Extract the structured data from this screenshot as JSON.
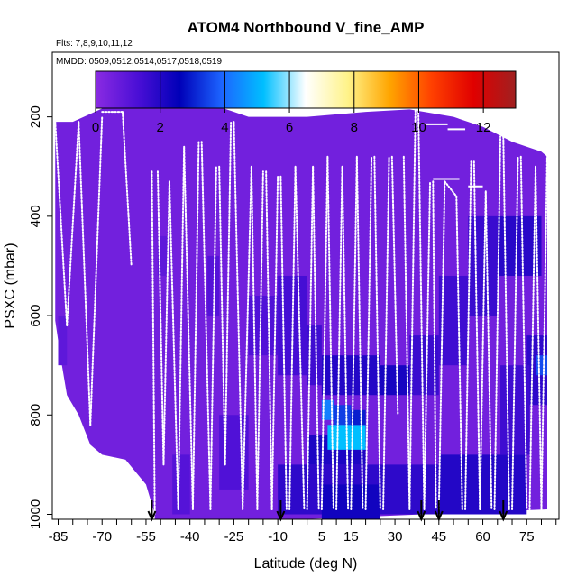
{
  "chart_data": {
    "type": "heatmap",
    "title": "ATOM4 Northbound V_fine_AMP",
    "subtitle_flights": "Flts: 7,8,9,10,11,12",
    "subtitle_dates": "MMDD: 0509,0512,0514,0517,0518,0519",
    "xlabel": "Latitude (deg N)",
    "ylabel": "PSXC (mbar)",
    "xlim": [
      -87,
      86
    ],
    "ylim": [
      1010,
      70
    ],
    "x_ticks": [
      -85,
      -70,
      -55,
      -40,
      -25,
      -10,
      5,
      15,
      30,
      45,
      60,
      75
    ],
    "x_tick_labels": [
      "-85",
      "-70",
      "-55",
      "-40",
      "-25",
      "-10",
      "5",
      "15",
      "30",
      "45",
      "60",
      "75"
    ],
    "y_ticks": [
      200,
      400,
      600,
      800,
      1000
    ],
    "y_tick_labels": [
      "200",
      "400",
      "600",
      "800",
      "1000"
    ],
    "colorbar": {
      "min": 0,
      "max": 13,
      "ticks": [
        0,
        2,
        4,
        6,
        8,
        10,
        12
      ],
      "tick_labels": [
        "0",
        "2",
        "4",
        "6",
        "8",
        "10",
        "12"
      ],
      "colors": [
        "#8a2be2",
        "#4b0fd6",
        "#0000b8",
        "#1c64ff",
        "#00bfff",
        "#ffffff",
        "#fff38a",
        "#ffa500",
        "#ff4000",
        "#e00000",
        "#a02020"
      ]
    },
    "background_value": 0.5,
    "top_boundary": [
      [
        -86,
        210
      ],
      [
        -80,
        210
      ],
      [
        -65,
        170
      ],
      [
        -50,
        170
      ],
      [
        -30,
        180
      ],
      [
        -20,
        200
      ],
      [
        0,
        200
      ],
      [
        20,
        190
      ],
      [
        35,
        185
      ],
      [
        50,
        200
      ],
      [
        60,
        220
      ],
      [
        70,
        250
      ],
      [
        80,
        270
      ],
      [
        82,
        280
      ]
    ],
    "bottom_boundary": [
      [
        -86,
        610
      ],
      [
        -84,
        690
      ],
      [
        -82,
        760
      ],
      [
        -78,
        800
      ],
      [
        -74,
        860
      ],
      [
        -70,
        880
      ],
      [
        -62,
        890
      ],
      [
        -55,
        940
      ],
      [
        -52,
        1000
      ]
    ],
    "cells": [
      {
        "lat": [
          -85,
          -82
        ],
        "p": [
          600,
          700
        ],
        "value": 0.9
      },
      {
        "lat": [
          -51,
          -47
        ],
        "p": [
          440,
          520
        ],
        "value": 0.9
      },
      {
        "lat": [
          -34,
          -30
        ],
        "p": [
          480,
          600
        ],
        "value": 1.1
      },
      {
        "lat": [
          -20,
          -10
        ],
        "p": [
          560,
          680
        ],
        "value": 1.2
      },
      {
        "lat": [
          -10,
          0
        ],
        "p": [
          520,
          720
        ],
        "value": 1.4
      },
      {
        "lat": [
          0,
          5
        ],
        "p": [
          620,
          740
        ],
        "value": 1.5
      },
      {
        "lat": [
          5,
          25
        ],
        "p": [
          680,
          760
        ],
        "value": 2.0
      },
      {
        "lat": [
          25,
          35
        ],
        "p": [
          700,
          760
        ],
        "value": 2.2
      },
      {
        "lat": [
          35,
          45
        ],
        "p": [
          640,
          760
        ],
        "value": 1.6
      },
      {
        "lat": [
          45,
          55
        ],
        "p": [
          520,
          700
        ],
        "value": 1.5
      },
      {
        "lat": [
          55,
          65
        ],
        "p": [
          400,
          600
        ],
        "value": 1.6
      },
      {
        "lat": [
          65,
          80
        ],
        "p": [
          400,
          520
        ],
        "value": 1.9
      },
      {
        "lat": [
          75,
          82
        ],
        "p": [
          640,
          780
        ],
        "value": 1.8
      },
      {
        "lat": [
          -10,
          45
        ],
        "p": [
          900,
          1000
        ],
        "value": 1.8
      },
      {
        "lat": [
          5,
          25
        ],
        "p": [
          940,
          1010
        ],
        "value": 2.3
      },
      {
        "lat": [
          45,
          75
        ],
        "p": [
          880,
          1000
        ],
        "value": 2.0
      },
      {
        "lat": [
          0,
          20
        ],
        "p": [
          840,
          900
        ],
        "value": 2.1
      },
      {
        "lat": [
          5,
          9
        ],
        "p": [
          770,
          810
        ],
        "value": 4.3
      },
      {
        "lat": [
          9,
          15
        ],
        "p": [
          780,
          820
        ],
        "value": 3.4
      },
      {
        "lat": [
          7,
          20
        ],
        "p": [
          820,
          870
        ],
        "value": 5.2
      },
      {
        "lat": [
          15,
          20
        ],
        "p": [
          790,
          820
        ],
        "value": 3.0
      },
      {
        "lat": [
          -46,
          -40
        ],
        "p": [
          880,
          1000
        ],
        "value": 1.1
      },
      {
        "lat": [
          -30,
          -20
        ],
        "p": [
          800,
          950
        ],
        "value": 1.2
      },
      {
        "lat": [
          66,
          76
        ],
        "p": [
          700,
          880
        ],
        "value": 1.5
      },
      {
        "lat": [
          78,
          82
        ],
        "p": [
          680,
          720
        ],
        "value": 3.6
      }
    ],
    "profiles": [
      {
        "lat_start": -86,
        "lat_end": -82,
        "p_start": 210,
        "p_end": 620
      },
      {
        "lat_start": -82,
        "lat_end": -78,
        "p_start": 620,
        "p_end": 210
      },
      {
        "lat_start": -78,
        "lat_end": -74,
        "p_start": 210,
        "p_end": 820
      },
      {
        "lat_start": -74,
        "lat_end": -70,
        "p_start": 820,
        "p_end": 200
      },
      {
        "lat_start": -70,
        "lat_end": -63,
        "p_start": 190,
        "p_end": 190
      },
      {
        "lat_start": -63,
        "lat_end": -60,
        "p_start": 190,
        "p_end": 500
      },
      {
        "lat_start": -53,
        "lat_end": -52,
        "p_start": 310,
        "p_end": 1000
      },
      {
        "lat_start": -51,
        "lat_end": -49,
        "p_start": 310,
        "p_end": 900
      },
      {
        "lat_start": -49,
        "lat_end": -47,
        "p_start": 900,
        "p_end": 330
      },
      {
        "lat_start": -47,
        "lat_end": -44,
        "p_start": 330,
        "p_end": 990
      },
      {
        "lat_start": -44,
        "lat_end": -42,
        "p_start": 990,
        "p_end": 260
      },
      {
        "lat_start": -42,
        "lat_end": -39,
        "p_start": 260,
        "p_end": 990
      },
      {
        "lat_start": -39,
        "lat_end": -37,
        "p_start": 990,
        "p_end": 250
      },
      {
        "lat_start": -36,
        "lat_end": -33,
        "p_start": 250,
        "p_end": 990
      },
      {
        "lat_start": -33,
        "lat_end": -31,
        "p_start": 990,
        "p_end": 300
      },
      {
        "lat_start": -30,
        "lat_end": -28,
        "p_start": 300,
        "p_end": 900
      },
      {
        "lat_start": -28,
        "lat_end": -26,
        "p_start": 900,
        "p_end": 210
      },
      {
        "lat_start": -25,
        "lat_end": -22,
        "p_start": 210,
        "p_end": 990
      },
      {
        "lat_start": -22,
        "lat_end": -19,
        "p_start": 990,
        "p_end": 300
      },
      {
        "lat_start": -19,
        "lat_end": -17,
        "p_start": 300,
        "p_end": 990
      },
      {
        "lat_start": -17,
        "lat_end": -15,
        "p_start": 990,
        "p_end": 310
      },
      {
        "lat_start": -14,
        "lat_end": -12,
        "p_start": 310,
        "p_end": 990
      },
      {
        "lat_start": -12,
        "lat_end": -10,
        "p_start": 990,
        "p_end": 320
      },
      {
        "lat_start": -9,
        "lat_end": -7,
        "p_start": 320,
        "p_end": 990
      },
      {
        "lat_start": -6,
        "lat_end": -4,
        "p_start": 990,
        "p_end": 300
      },
      {
        "lat_start": -4,
        "lat_end": -1,
        "p_start": 300,
        "p_end": 990
      },
      {
        "lat_start": 0,
        "lat_end": 2,
        "p_start": 990,
        "p_end": 300
      },
      {
        "lat_start": 2,
        "lat_end": 4,
        "p_start": 300,
        "p_end": 990
      },
      {
        "lat_start": 5,
        "lat_end": 7,
        "p_start": 990,
        "p_end": 280
      },
      {
        "lat_start": 7,
        "lat_end": 9,
        "p_start": 280,
        "p_end": 990
      },
      {
        "lat_start": 10,
        "lat_end": 12,
        "p_start": 990,
        "p_end": 300
      },
      {
        "lat_start": 12,
        "lat_end": 14,
        "p_start": 300,
        "p_end": 990
      },
      {
        "lat_start": 15,
        "lat_end": 17,
        "p_start": 990,
        "p_end": 280
      },
      {
        "lat_start": 17,
        "lat_end": 19,
        "p_start": 280,
        "p_end": 990
      },
      {
        "lat_start": 20,
        "lat_end": 22,
        "p_start": 990,
        "p_end": 280
      },
      {
        "lat_start": 23,
        "lat_end": 25,
        "p_start": 280,
        "p_end": 990
      },
      {
        "lat_start": 26,
        "lat_end": 28,
        "p_start": 990,
        "p_end": 280
      },
      {
        "lat_start": 29,
        "lat_end": 31,
        "p_start": 280,
        "p_end": 800
      },
      {
        "lat_start": 33,
        "lat_end": 35,
        "p_start": 280,
        "p_end": 990
      },
      {
        "lat_start": 35,
        "lat_end": 37,
        "p_start": 990,
        "p_end": 185
      },
      {
        "lat_start": 38,
        "lat_end": 40,
        "p_start": 185,
        "p_end": 990
      },
      {
        "lat_start": 40,
        "lat_end": 42,
        "p_start": 990,
        "p_end": 330
      },
      {
        "lat_start": 43,
        "lat_end": 44,
        "p_start": 330,
        "p_end": 990
      },
      {
        "lat_start": 45,
        "lat_end": 47,
        "p_start": 990,
        "p_end": 330
      },
      {
        "lat_start": 47,
        "lat_end": 51,
        "p_start": 330,
        "p_end": 360
      },
      {
        "lat_start": 51,
        "lat_end": 53,
        "p_start": 360,
        "p_end": 990
      },
      {
        "lat_start": 54,
        "lat_end": 56,
        "p_start": 990,
        "p_end": 290
      },
      {
        "lat_start": 57,
        "lat_end": 59,
        "p_start": 290,
        "p_end": 990
      },
      {
        "lat_start": 59,
        "lat_end": 61,
        "p_start": 990,
        "p_end": 350
      },
      {
        "lat_start": 61,
        "lat_end": 63,
        "p_start": 350,
        "p_end": 990
      },
      {
        "lat_start": 64,
        "lat_end": 66,
        "p_start": 990,
        "p_end": 240
      },
      {
        "lat_start": 67,
        "lat_end": 69,
        "p_start": 240,
        "p_end": 990
      },
      {
        "lat_start": 70,
        "lat_end": 72,
        "p_start": 990,
        "p_end": 280
      },
      {
        "lat_start": 73,
        "lat_end": 75,
        "p_start": 280,
        "p_end": 990
      },
      {
        "lat_start": 76,
        "lat_end": 78,
        "p_start": 990,
        "p_end": 300
      },
      {
        "lat_start": 78,
        "lat_end": 80,
        "p_start": 300,
        "p_end": 990
      },
      {
        "lat_start": 80,
        "lat_end": 82,
        "p_start": 990,
        "p_end": 270
      }
    ],
    "level_segments": [
      {
        "lat": [
          40,
          48
        ],
        "p": 215
      },
      {
        "lat": [
          48,
          54
        ],
        "p": 225
      },
      {
        "lat": [
          57,
          62
        ],
        "p": 205
      },
      {
        "lat": [
          62,
          68
        ],
        "p": 205
      },
      {
        "lat": [
          55,
          60
        ],
        "p": 340
      },
      {
        "lat": [
          43,
          52
        ],
        "p": 325
      }
    ],
    "arrows_lat": [
      -53,
      -9,
      39,
      45,
      67
    ]
  }
}
